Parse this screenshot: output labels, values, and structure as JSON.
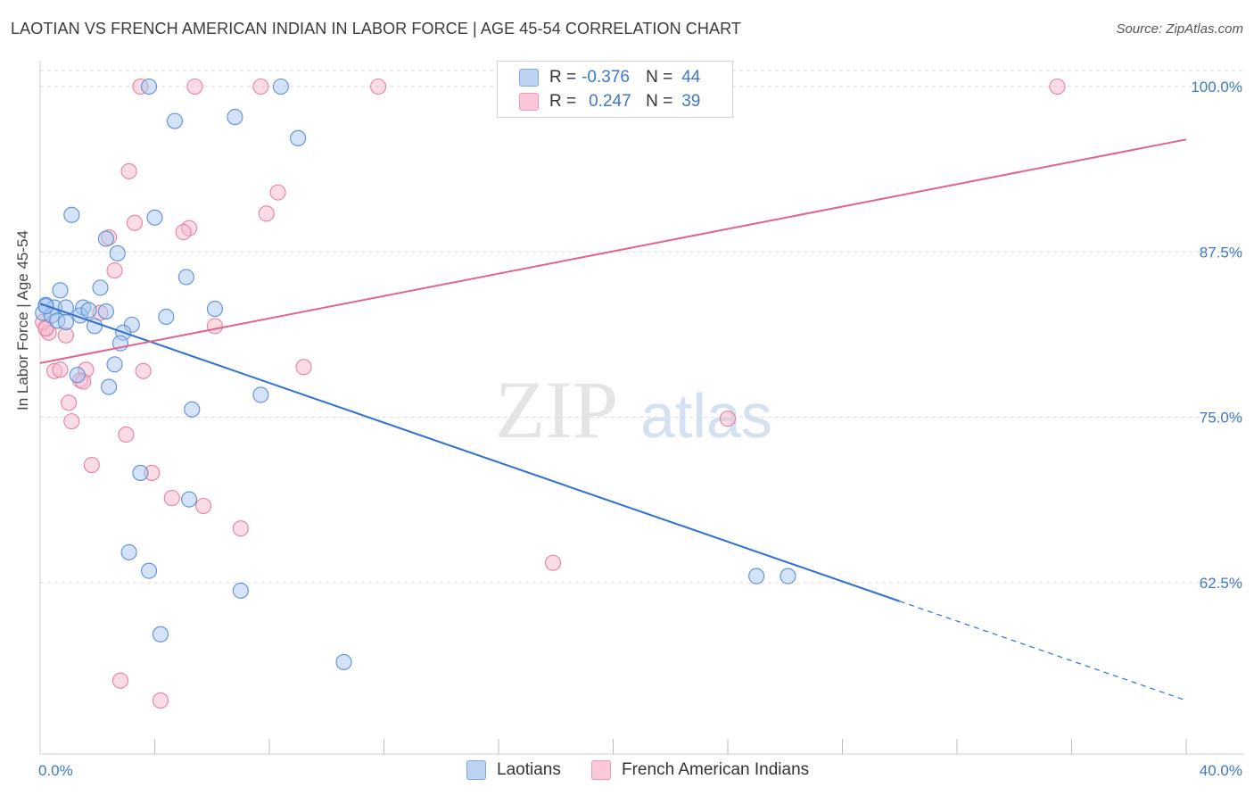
{
  "header": {
    "title": "LAOTIAN VS FRENCH AMERICAN INDIAN IN LABOR FORCE | AGE 45-54 CORRELATION CHART",
    "source": "Source: ZipAtlas.com"
  },
  "watermark": {
    "zip": "ZIP",
    "atlas": "atlas"
  },
  "legend": {
    "rows": [
      {
        "r_label": "R =",
        "r_value": "-0.376",
        "n_label": "N =",
        "n_value": "44"
      },
      {
        "r_label": "R =",
        "r_value": "0.247",
        "n_label": "N =",
        "n_value": "39"
      }
    ]
  },
  "colors": {
    "blue_fill": "#a9c7ef",
    "blue_stroke": "#5d8fd6",
    "blue_line": "#2f6fd0",
    "pink_fill": "#f5b9cc",
    "pink_stroke": "#e8809f",
    "pink_line": "#e0648c",
    "axis_text": "#3c78c8",
    "grid": "#d9d9d9"
  },
  "chart_data": {
    "type": "scatter",
    "title": "LAOTIAN VS FRENCH AMERICAN INDIAN IN LABOR FORCE | AGE 45-54 CORRELATION CHART",
    "xlabel": "",
    "ylabel": "In Labor Force | Age 45-54",
    "xlim": [
      0,
      40
    ],
    "ylim": [
      51,
      101.1
    ],
    "x_tick_labels": [
      {
        "value": 0,
        "label": "0.0%"
      },
      {
        "value": 40,
        "label": "40.0%"
      }
    ],
    "y_tick_labels": [
      {
        "value": 100,
        "label": "100.0%"
      },
      {
        "value": 87.5,
        "label": "87.5%"
      },
      {
        "value": 75,
        "label": "75.0%"
      },
      {
        "value": 62.5,
        "label": "62.5%"
      }
    ],
    "x_minor_ticks": [
      4,
      8,
      12,
      16,
      20,
      24,
      28,
      32,
      36,
      40
    ],
    "series": [
      {
        "name": "Laotians",
        "color": "#a9c7ef",
        "r": -0.376,
        "n": 44,
        "trend": {
          "x0": 0,
          "y0": 83.6,
          "x1": 30,
          "y1": 61.1,
          "dash_to_x": 40,
          "dash_to_y": 53.6
        },
        "points": [
          [
            3.8,
            100
          ],
          [
            8.4,
            100
          ],
          [
            4.7,
            97.4
          ],
          [
            6.8,
            97.7
          ],
          [
            9.0,
            96.1
          ],
          [
            1.1,
            90.3
          ],
          [
            4.0,
            90.1
          ],
          [
            2.3,
            88.5
          ],
          [
            2.7,
            87.4
          ],
          [
            5.1,
            85.6
          ],
          [
            0.7,
            84.6
          ],
          [
            2.1,
            84.8
          ],
          [
            0.2,
            83.5
          ],
          [
            0.5,
            83.3
          ],
          [
            0.9,
            83.3
          ],
          [
            1.5,
            83.3
          ],
          [
            0.1,
            82.9
          ],
          [
            0.4,
            82.7
          ],
          [
            1.4,
            82.7
          ],
          [
            1.7,
            83.1
          ],
          [
            2.3,
            83.0
          ],
          [
            6.1,
            83.2
          ],
          [
            0.6,
            82.3
          ],
          [
            0.9,
            82.2
          ],
          [
            4.4,
            82.6
          ],
          [
            1.9,
            81.9
          ],
          [
            3.2,
            82.0
          ],
          [
            2.9,
            81.4
          ],
          [
            2.8,
            80.6
          ],
          [
            2.6,
            79.0
          ],
          [
            1.3,
            78.2
          ],
          [
            2.4,
            77.3
          ],
          [
            7.7,
            76.7
          ],
          [
            5.3,
            75.6
          ],
          [
            3.5,
            70.8
          ],
          [
            5.2,
            68.8
          ],
          [
            3.1,
            64.8
          ],
          [
            3.8,
            63.4
          ],
          [
            7.0,
            61.9
          ],
          [
            4.2,
            58.6
          ],
          [
            10.6,
            56.5
          ],
          [
            25.0,
            63.0
          ],
          [
            26.1,
            63.0
          ],
          [
            0.2,
            83.4
          ]
        ]
      },
      {
        "name": "French American Indians",
        "color": "#f5b9cc",
        "r": 0.247,
        "n": 39,
        "trend": {
          "x0": 0,
          "y0": 79.1,
          "x1": 40,
          "y1": 96.0
        },
        "points": [
          [
            3.5,
            100
          ],
          [
            5.4,
            100
          ],
          [
            7.7,
            100
          ],
          [
            11.8,
            100
          ],
          [
            35.5,
            100
          ],
          [
            3.1,
            93.6
          ],
          [
            8.3,
            92.0
          ],
          [
            7.9,
            90.4
          ],
          [
            3.3,
            89.7
          ],
          [
            5.2,
            89.3
          ],
          [
            5.0,
            89.0
          ],
          [
            2.4,
            88.6
          ],
          [
            2.6,
            86.1
          ],
          [
            2.1,
            82.9
          ],
          [
            6.1,
            81.9
          ],
          [
            0.2,
            81.8
          ],
          [
            0.3,
            81.4
          ],
          [
            0.9,
            81.2
          ],
          [
            0.5,
            78.5
          ],
          [
            0.7,
            78.6
          ],
          [
            1.6,
            78.6
          ],
          [
            3.6,
            78.5
          ],
          [
            9.2,
            78.8
          ],
          [
            1.4,
            77.8
          ],
          [
            1.5,
            77.7
          ],
          [
            1.0,
            76.1
          ],
          [
            1.1,
            74.7
          ],
          [
            3.0,
            73.7
          ],
          [
            24.0,
            74.9
          ],
          [
            1.8,
            71.4
          ],
          [
            3.9,
            70.8
          ],
          [
            4.6,
            68.9
          ],
          [
            5.7,
            68.3
          ],
          [
            7.0,
            66.6
          ],
          [
            17.9,
            64.0
          ],
          [
            2.8,
            55.1
          ],
          [
            4.2,
            53.6
          ],
          [
            0.1,
            82.2
          ],
          [
            0.2,
            81.7
          ]
        ]
      }
    ]
  },
  "bottom_legend": {
    "items": [
      {
        "label": "Laotians"
      },
      {
        "label": "French American Indians"
      }
    ]
  }
}
